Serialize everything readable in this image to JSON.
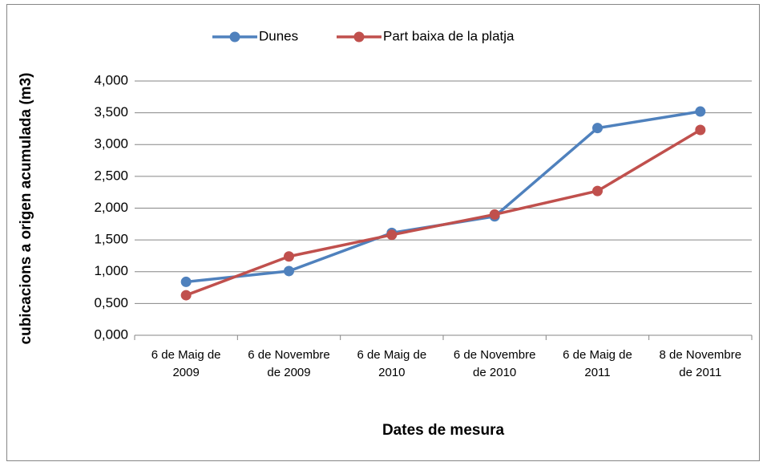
{
  "chart_data": {
    "type": "line",
    "x_label": "Dates de mesura",
    "y_label": "cubicacions a origen acumulada (m3)",
    "categories": [
      "6 de Maig de 2009",
      "6 de Novembre de 2009",
      "6 de Maig de 2010",
      "6 de Novembre de 2010",
      "6 de Maig de 2011",
      "8 de Novembre de 2011"
    ],
    "series": [
      {
        "name": "Dunes",
        "color": "#4f81bd",
        "values": [
          0.84,
          1.01,
          1.61,
          1.87,
          3.26,
          3.52
        ]
      },
      {
        "name": "Part baixa de la platja",
        "color": "#c0504d",
        "values": [
          0.63,
          1.24,
          1.58,
          1.9,
          2.27,
          3.23
        ]
      }
    ],
    "ylim": [
      0,
      4
    ],
    "yticks": [
      {
        "value": 0,
        "label": "0,000"
      },
      {
        "value": 0.5,
        "label": "0,500"
      },
      {
        "value": 1,
        "label": "1,000"
      },
      {
        "value": 1.5,
        "label": "1,500"
      },
      {
        "value": 2,
        "label": "2,000"
      },
      {
        "value": 2.5,
        "label": "2,500"
      },
      {
        "value": 3,
        "label": "3,000"
      },
      {
        "value": 3.5,
        "label": "3,500"
      },
      {
        "value": 4,
        "label": "4,000"
      }
    ],
    "grid": true,
    "legend": "top"
  }
}
